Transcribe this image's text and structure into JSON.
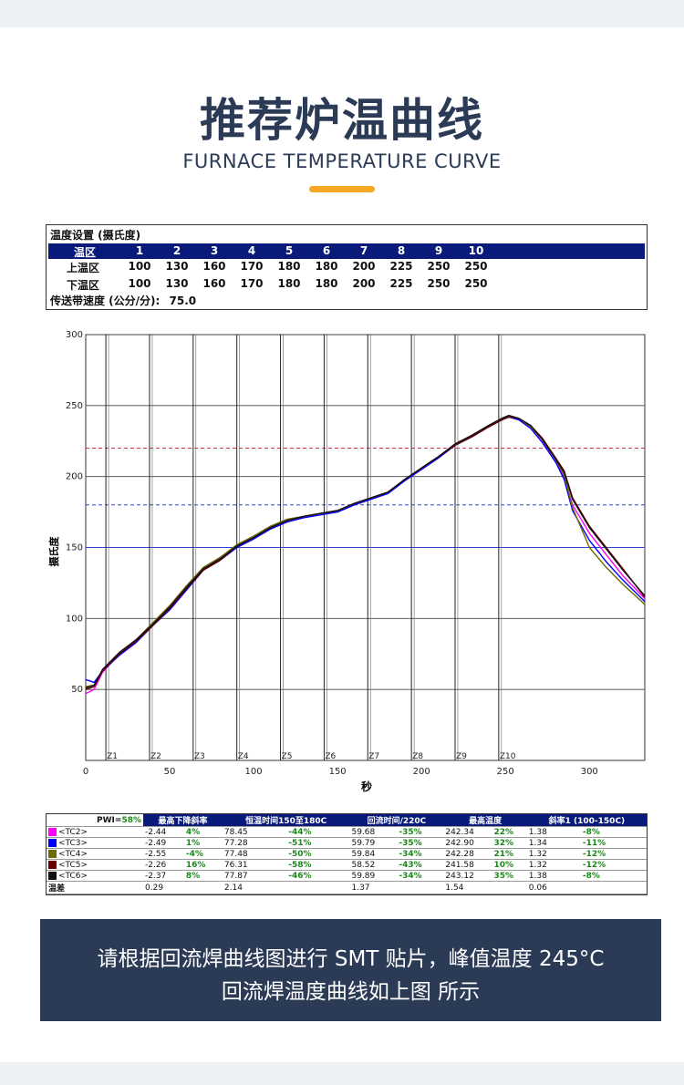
{
  "header": {
    "title": "推荐炉温曲线",
    "subtitle": "FURNACE TEMPERATURE CURVE"
  },
  "settings": {
    "title": "温度设置 (摄氏度)",
    "zone_label": "温区",
    "zones": [
      "1",
      "2",
      "3",
      "4",
      "5",
      "6",
      "7",
      "8",
      "9",
      "10"
    ],
    "upper_label": "上温区",
    "upper": [
      "100",
      "130",
      "160",
      "170",
      "180",
      "180",
      "200",
      "225",
      "250",
      "250"
    ],
    "lower_label": "下温区",
    "lower": [
      "100",
      "130",
      "160",
      "170",
      "180",
      "180",
      "200",
      "225",
      "250",
      "250"
    ],
    "speed_label": "传送带速度 (公分/分):",
    "speed_value": "75.0"
  },
  "chart_data": {
    "type": "line",
    "xlabel": "秒",
    "ylabel": "摄氏度",
    "xlim": [
      0,
      333
    ],
    "ylim": [
      0,
      300
    ],
    "xticks": [
      "0",
      "50",
      "100",
      "150",
      "200",
      "250",
      "300"
    ],
    "yticks": [
      "50",
      "100",
      "150",
      "200",
      "250",
      "300"
    ],
    "zone_markers": [
      {
        "label": "Z1",
        "x": 12
      },
      {
        "label": "Z2",
        "x": 38
      },
      {
        "label": "Z3",
        "x": 64
      },
      {
        "label": "Z4",
        "x": 90
      },
      {
        "label": "Z5",
        "x": 116
      },
      {
        "label": "Z6",
        "x": 142
      },
      {
        "label": "Z7",
        "x": 168
      },
      {
        "label": "Z8",
        "x": 194
      },
      {
        "label": "Z9",
        "x": 220
      },
      {
        "label": "Z10",
        "x": 246
      }
    ],
    "reference_lines": [
      {
        "y": 220,
        "color": "#cc3344",
        "style": "dashed"
      },
      {
        "y": 180,
        "color": "#3344cc",
        "style": "dashed"
      },
      {
        "y": 150,
        "color": "#3344cc",
        "style": "solid"
      }
    ],
    "series": [
      {
        "name": "<TC2>",
        "color": "#ff00ff",
        "x": [
          0,
          5,
          10,
          20,
          30,
          40,
          50,
          60,
          70,
          80,
          90,
          100,
          110,
          120,
          130,
          140,
          150,
          160,
          170,
          180,
          190,
          200,
          210,
          220,
          230,
          240,
          248,
          252,
          258,
          265,
          272,
          280,
          285,
          290,
          300,
          310,
          320,
          333
        ],
        "y": [
          47,
          50,
          62,
          75,
          84,
          96,
          108,
          122,
          135,
          142,
          151,
          157,
          164,
          169,
          172,
          174,
          176,
          181,
          185,
          189,
          198,
          206,
          214,
          223,
          229,
          236,
          240,
          242,
          240,
          234,
          224,
          210,
          200,
          180,
          160,
          145,
          130,
          114
        ]
      },
      {
        "name": "<TC3>",
        "color": "#0000ff",
        "x": [
          0,
          5,
          10,
          20,
          30,
          40,
          50,
          60,
          70,
          80,
          90,
          100,
          110,
          120,
          130,
          140,
          150,
          160,
          170,
          180,
          190,
          200,
          210,
          220,
          230,
          240,
          248,
          252,
          258,
          265,
          272,
          280,
          285,
          290,
          300,
          310,
          320,
          333
        ],
        "y": [
          57,
          55,
          63,
          74,
          83,
          95,
          106,
          120,
          134,
          141,
          150,
          156,
          163,
          168,
          171,
          173,
          175,
          180,
          184,
          188,
          197,
          205,
          213,
          222,
          228,
          235,
          240,
          242,
          240,
          234,
          224,
          210,
          198,
          176,
          155,
          140,
          127,
          112
        ]
      },
      {
        "name": "<TC4>",
        "color": "#6b6b00",
        "x": [
          0,
          5,
          10,
          20,
          30,
          40,
          50,
          60,
          70,
          80,
          90,
          100,
          110,
          120,
          130,
          140,
          150,
          160,
          170,
          180,
          190,
          200,
          210,
          220,
          230,
          240,
          248,
          252,
          258,
          265,
          272,
          280,
          285,
          290,
          300,
          310,
          320,
          333
        ],
        "y": [
          52,
          53,
          64,
          76,
          85,
          97,
          109,
          123,
          136,
          143,
          152,
          158,
          165,
          170,
          172,
          174,
          176,
          181,
          185,
          189,
          198,
          206,
          214,
          223,
          229,
          236,
          241,
          243,
          241,
          235,
          226,
          212,
          201,
          178,
          150,
          136,
          124,
          110
        ]
      },
      {
        "name": "<TC5>",
        "color": "#660000",
        "x": [
          0,
          5,
          10,
          20,
          30,
          40,
          50,
          60,
          70,
          80,
          90,
          100,
          110,
          120,
          130,
          140,
          150,
          160,
          170,
          180,
          190,
          200,
          210,
          220,
          230,
          240,
          248,
          252,
          258,
          265,
          272,
          280,
          285,
          290,
          300,
          310,
          320,
          333
        ],
        "y": [
          50,
          52,
          63,
          75,
          84,
          95,
          107,
          121,
          134,
          141,
          151,
          157,
          164,
          169,
          172,
          174,
          176,
          181,
          185,
          189,
          198,
          206,
          214,
          222,
          228,
          235,
          240,
          242,
          241,
          236,
          227,
          213,
          204,
          185,
          165,
          150,
          135,
          115
        ]
      },
      {
        "name": "<TC6>",
        "color": "#111111",
        "x": [
          0,
          5,
          10,
          20,
          30,
          40,
          50,
          60,
          70,
          80,
          90,
          100,
          110,
          120,
          130,
          140,
          150,
          160,
          170,
          180,
          190,
          200,
          210,
          220,
          230,
          240,
          248,
          252,
          258,
          265,
          272,
          280,
          285,
          290,
          300,
          310,
          320,
          333
        ],
        "y": [
          51,
          53,
          64,
          76,
          85,
          96,
          108,
          122,
          135,
          142,
          151,
          157,
          164,
          169,
          172,
          174,
          176,
          181,
          185,
          189,
          198,
          206,
          214,
          223,
          229,
          236,
          241,
          243,
          241,
          236,
          226,
          212,
          203,
          184,
          164,
          149,
          134,
          116
        ]
      }
    ]
  },
  "results": {
    "pwi_label": "PWI=",
    "pwi_value": "58%",
    "headers": [
      "最高下降斜率",
      "恒温时间150至180C",
      "回流时间/220C",
      "最高温度",
      "斜率1 (100-150C)"
    ],
    "rows": [
      {
        "name": "<TC2>",
        "color": "#ff00ff",
        "v": [
          "-2.44",
          "4%",
          "78.45",
          "-44%",
          "59.68",
          "-35%",
          "242.34",
          "22%",
          "1.38",
          "-8%"
        ]
      },
      {
        "name": "<TC3>",
        "color": "#0000ff",
        "v": [
          "-2.49",
          "1%",
          "77.28",
          "-51%",
          "59.79",
          "-35%",
          "242.90",
          "32%",
          "1.34",
          "-11%"
        ]
      },
      {
        "name": "<TC4>",
        "color": "#6b6b00",
        "v": [
          "-2.55",
          "-4%",
          "77.48",
          "-50%",
          "59.84",
          "-34%",
          "242.28",
          "21%",
          "1.32",
          "-12%"
        ]
      },
      {
        "name": "<TC5>",
        "color": "#660000",
        "v": [
          "-2.26",
          "16%",
          "76.31",
          "-58%",
          "58.52",
          "-43%",
          "241.58",
          "10%",
          "1.32",
          "-12%"
        ]
      },
      {
        "name": "<TC6>",
        "color": "#111111",
        "v": [
          "-2.37",
          "8%",
          "77.87",
          "-46%",
          "59.89",
          "-34%",
          "243.12",
          "35%",
          "1.38",
          "-8%"
        ]
      }
    ],
    "diff_label": "温差",
    "diff": [
      "0.29",
      "2.14",
      "1.37",
      "1.54",
      "0.06"
    ]
  },
  "note": {
    "line1": "请根据回流焊曲线图进行 SMT 贴片，峰值温度 245°C",
    "line2": "回流焊温度曲线如上图 所示"
  }
}
